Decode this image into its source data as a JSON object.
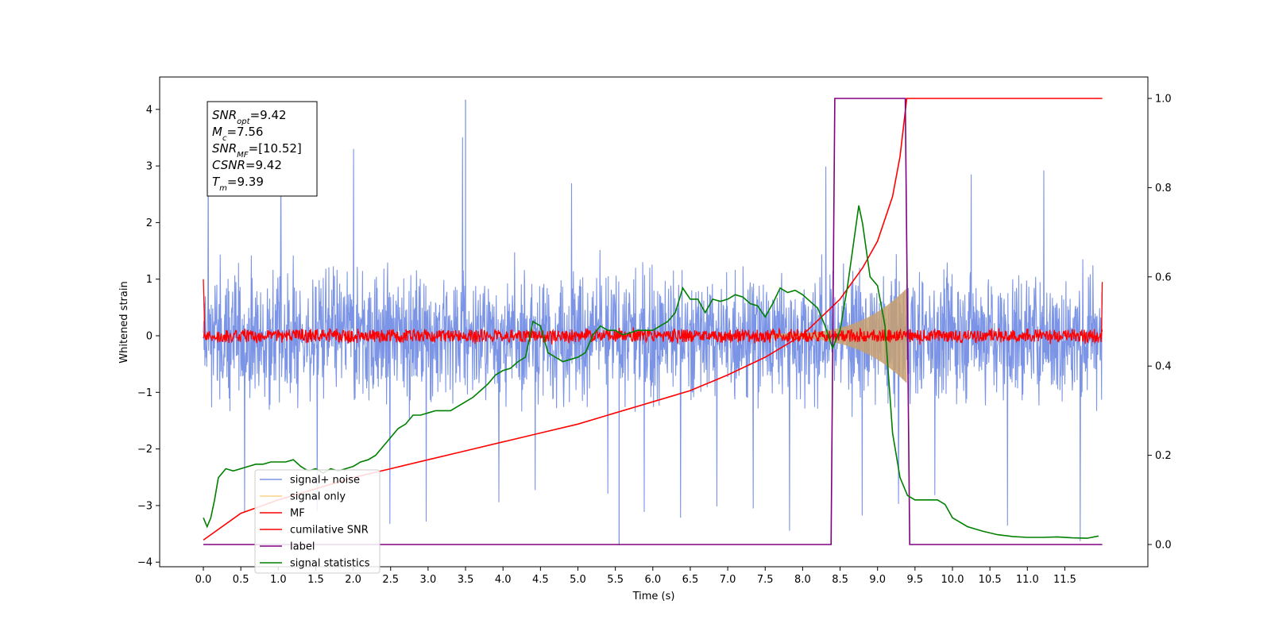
{
  "chart_data": {
    "type": "line",
    "xlabel": "Time (s)",
    "ylabel": "Whitened strain",
    "x_ticks": [
      "0.0",
      "0.5",
      "1.0",
      "1.5",
      "2.0",
      "2.5",
      "3.0",
      "3.5",
      "4.0",
      "4.5",
      "5.0",
      "5.5",
      "6.0",
      "6.5",
      "7.0",
      "7.5",
      "8.0",
      "8.5",
      "9.0",
      "9.5",
      "10.0",
      "10.5",
      "11.0",
      "11.5"
    ],
    "y_left_ticks": [
      "4",
      "3",
      "2",
      "1",
      "0",
      "−1",
      "−2",
      "−3",
      "−4"
    ],
    "y_right_ticks": [
      "1.0",
      "0.8",
      "0.6",
      "0.4",
      "0.2",
      "0.0"
    ],
    "xlim": [
      -0.3,
      12.3
    ],
    "ylim_left": [
      -4.1,
      4.55
    ],
    "ylim_right": [
      -0.02,
      1.03
    ],
    "annotation": {
      "lines": [
        {
          "main": "SNR",
          "sub": "opt",
          "rest": "=9.42"
        },
        {
          "main": "M",
          "sub": "c",
          "rest": "=7.56"
        },
        {
          "main": "SNR",
          "sub": "MF",
          "rest": "=[10.52]"
        },
        {
          "main": "CSNR",
          "sub": "",
          "rest": "=9.42"
        },
        {
          "main": "T",
          "sub": "m",
          "rest": "=9.39"
        }
      ]
    },
    "legend": {
      "placement": "lower-left",
      "entries": [
        {
          "label": "signal+ noise",
          "color": "#7b94e6"
        },
        {
          "label": "signal only",
          "color": "#fcd384"
        },
        {
          "label": "MF",
          "color": "#ff0000"
        },
        {
          "label": "cumilative SNR",
          "color": "#ff0000"
        },
        {
          "label": "label",
          "color": "#800080"
        },
        {
          "label": "signal statistics",
          "color": "#008000"
        }
      ]
    },
    "series": [
      {
        "name": "signal+ noise",
        "axis": "left",
        "color": "#7b94e6",
        "style": "dense noise",
        "x_range": [
          0.0,
          12.0
        ],
        "amplitude": 0.85,
        "extremes": [
          4.17,
          -3.7
        ]
      },
      {
        "name": "signal only",
        "axis": "left",
        "color": "#c8a070",
        "style": "chirp envelope",
        "x_range": [
          7.6,
          9.39
        ],
        "peak_amplitude": 0.8
      },
      {
        "name": "MF",
        "axis": "left",
        "color": "#ff0000",
        "style": "narrow noise",
        "x_range": [
          0.0,
          12.0
        ],
        "amplitude": 0.12
      },
      {
        "name": "cumilative SNR",
        "axis": "right",
        "color": "#ff0000",
        "x": [
          0.0,
          0.5,
          1.0,
          1.5,
          2.0,
          2.5,
          3.0,
          3.5,
          4.0,
          4.5,
          5.0,
          5.5,
          6.0,
          6.5,
          7.0,
          7.5,
          8.0,
          8.5,
          8.8,
          9.0,
          9.2,
          9.3,
          9.39,
          9.6,
          10.0,
          11.0,
          12.0
        ],
        "y": [
          0.01,
          0.07,
          0.1,
          0.125,
          0.15,
          0.17,
          0.19,
          0.21,
          0.23,
          0.25,
          0.27,
          0.295,
          0.32,
          0.345,
          0.38,
          0.42,
          0.47,
          0.55,
          0.62,
          0.68,
          0.78,
          0.87,
          1.0,
          1.0,
          1.0,
          1.0,
          1.0
        ]
      },
      {
        "name": "label",
        "axis": "right",
        "color": "#800080",
        "x": [
          0.0,
          8.38,
          8.43,
          9.37,
          9.43,
          12.0
        ],
        "y": [
          0.0,
          0.0,
          1.0,
          1.0,
          0.0,
          0.0
        ]
      },
      {
        "name": "signal statistics",
        "axis": "right",
        "color": "#008000",
        "x": [
          0.0,
          0.05,
          0.1,
          0.15,
          0.2,
          0.25,
          0.3,
          0.4,
          0.5,
          0.6,
          0.7,
          0.8,
          0.9,
          1.0,
          1.1,
          1.2,
          1.3,
          1.4,
          1.5,
          1.6,
          1.7,
          1.8,
          1.9,
          2.0,
          2.1,
          2.2,
          2.3,
          2.4,
          2.5,
          2.6,
          2.7,
          2.8,
          2.9,
          3.0,
          3.1,
          3.2,
          3.3,
          3.4,
          3.5,
          3.6,
          3.7,
          3.8,
          3.9,
          4.0,
          4.1,
          4.2,
          4.3,
          4.4,
          4.5,
          4.6,
          4.7,
          4.8,
          4.9,
          5.0,
          5.1,
          5.2,
          5.3,
          5.4,
          5.5,
          5.6,
          5.7,
          5.8,
          5.9,
          6.0,
          6.1,
          6.2,
          6.3,
          6.4,
          6.5,
          6.6,
          6.7,
          6.8,
          6.9,
          7.0,
          7.1,
          7.2,
          7.3,
          7.4,
          7.5,
          7.6,
          7.7,
          7.8,
          7.9,
          8.0,
          8.1,
          8.2,
          8.3,
          8.4,
          8.5,
          8.6,
          8.7,
          8.75,
          8.8,
          8.9,
          9.0,
          9.1,
          9.2,
          9.3,
          9.4,
          9.5,
          9.6,
          9.7,
          9.8,
          9.9,
          10.0,
          10.2,
          10.4,
          10.6,
          10.8,
          11.0,
          11.2,
          11.4,
          11.6,
          11.8,
          11.95
        ],
        "y": [
          0.06,
          0.04,
          0.06,
          0.1,
          0.15,
          0.16,
          0.17,
          0.165,
          0.17,
          0.175,
          0.18,
          0.18,
          0.185,
          0.185,
          0.185,
          0.19,
          0.175,
          0.165,
          0.17,
          0.16,
          0.17,
          0.165,
          0.17,
          0.175,
          0.185,
          0.19,
          0.2,
          0.22,
          0.24,
          0.26,
          0.27,
          0.29,
          0.29,
          0.295,
          0.3,
          0.3,
          0.3,
          0.31,
          0.32,
          0.33,
          0.345,
          0.36,
          0.38,
          0.39,
          0.395,
          0.41,
          0.42,
          0.5,
          0.49,
          0.43,
          0.42,
          0.41,
          0.415,
          0.42,
          0.43,
          0.47,
          0.49,
          0.48,
          0.48,
          0.47,
          0.475,
          0.48,
          0.48,
          0.48,
          0.49,
          0.5,
          0.52,
          0.575,
          0.55,
          0.55,
          0.52,
          0.55,
          0.545,
          0.55,
          0.56,
          0.555,
          0.54,
          0.535,
          0.51,
          0.54,
          0.575,
          0.565,
          0.57,
          0.56,
          0.545,
          0.53,
          0.49,
          0.44,
          0.48,
          0.58,
          0.7,
          0.76,
          0.72,
          0.6,
          0.58,
          0.49,
          0.25,
          0.15,
          0.11,
          0.1,
          0.1,
          0.1,
          0.1,
          0.09,
          0.06,
          0.04,
          0.03,
          0.022,
          0.018,
          0.016,
          0.016,
          0.017,
          0.015,
          0.014,
          0.019
        ]
      }
    ]
  }
}
